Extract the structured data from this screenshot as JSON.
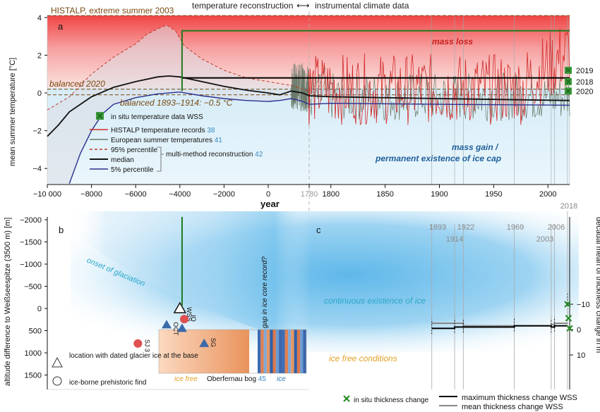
{
  "header": {
    "left": "temperature reconstruction",
    "arrow": "⟷",
    "right": "instrumental climate data"
  },
  "colors": {
    "histalp": "#d42a2a",
    "european": "#6b7b6b",
    "p95": "#c0392b",
    "median": "#111111",
    "p5": "#2a2f8f",
    "wss": "#1f7a1f",
    "ice_text": "#2aa7c9",
    "mass_loss": "#c81e1e",
    "mass_gain": "#1f5f9a",
    "dark_brown": "#7a4a12",
    "ice_free_text": "#e0a020",
    "ref_num": "#3a8ac0",
    "max_thick": "#000000",
    "mean_thick": "#888888"
  },
  "chart_data": [
    {
      "panel": "a",
      "type": "line",
      "ylabel": "mean summer temperature [°C]",
      "xlabel": "year",
      "ylim": [
        -4.6,
        4.1
      ],
      "yticks": [
        "−4",
        "−2",
        "0",
        "2",
        "4"
      ],
      "ytick_values": [
        -4,
        -2,
        0,
        2,
        4
      ],
      "xticks_left": [
        "−10 000",
        "−8000",
        "−6000",
        "−4000",
        "−2000",
        "0"
      ],
      "xtick_values_left": [
        -10000,
        -8000,
        -6000,
        -4000,
        -2000,
        0
      ],
      "xticks_right": [
        "1780",
        "1800",
        "1850",
        "1900",
        "1950",
        "2000"
      ],
      "xtick_values_right": [
        1780,
        1800,
        1850,
        1900,
        1950,
        2000
      ],
      "reference_lines": [
        {
          "label": "HISTALP, extreme summer 2003",
          "y": 4.1
        },
        {
          "label": "balanced 2020",
          "y": 0.2
        },
        {
          "label": "balanced 1893–1914: −0.5 °C",
          "y": -0.1
        }
      ],
      "in_situ_points": [
        {
          "year": 2019,
          "label": "2019",
          "y": 1.2
        },
        {
          "year": 2018,
          "label": "2018",
          "y": 0.6
        },
        {
          "year": 2020,
          "label": "2020",
          "y": 0.1
        }
      ],
      "series": [
        {
          "name": "95% percentile",
          "x": [
            -10000,
            -9000,
            -8000,
            -7000,
            -6000,
            -5500,
            -5000,
            -4600,
            -4200,
            -3800,
            -3000,
            -2000,
            -1000,
            0,
            500,
            1000,
            1500,
            1780
          ],
          "y": [
            -0.9,
            -0.2,
            1.0,
            1.9,
            2.6,
            3.1,
            3.4,
            3.6,
            3.3,
            2.5,
            1.8,
            1.2,
            0.8,
            0.6,
            0.5,
            0.4,
            0.2,
            0.1
          ]
        },
        {
          "name": "median",
          "x": [
            -10000,
            -9500,
            -9000,
            -8000,
            -7000,
            -6000,
            -5000,
            -4500,
            -4000,
            -3000,
            -2000,
            -1000,
            0,
            500,
            1000,
            1500,
            1780,
            1800,
            1900,
            2020
          ],
          "y": [
            -2.3,
            -1.7,
            -1.0,
            -0.2,
            0.3,
            0.6,
            0.85,
            0.9,
            0.85,
            0.6,
            0.35,
            0.15,
            0.0,
            -0.1,
            0.1,
            0.0,
            -0.15,
            -0.2,
            -0.3,
            -0.4
          ]
        },
        {
          "name": "5% percentile",
          "x": [
            -9000,
            -8500,
            -8000,
            -7500,
            -7000,
            -6000,
            -5000,
            -4000,
            -3000,
            -2000,
            -1000,
            0,
            500,
            1000,
            1500,
            1780,
            1800,
            1900,
            2020
          ],
          "y": [
            -4.8,
            -3.2,
            -2.0,
            -1.1,
            -0.6,
            -0.25,
            -0.05,
            0.05,
            -0.15,
            -0.3,
            -0.4,
            -0.45,
            -0.4,
            -0.3,
            -0.45,
            -0.6,
            -0.55,
            -0.6,
            -0.65
          ]
        },
        {
          "name": "WSS",
          "x": [
            -3900,
            -3900,
            2020
          ],
          "y": [
            0.1,
            3.3,
            3.3
          ]
        },
        {
          "name": "WSS level",
          "x": [
            -3900,
            2020
          ],
          "y": [
            0.8,
            0.8
          ]
        }
      ],
      "annotations": [
        "mass loss",
        "mass gain /",
        "permanent existence of ice cap"
      ],
      "legend": [
        {
          "label": "in situ temperature data WSS",
          "ref": ""
        },
        {
          "label": "HISTALP temperature records",
          "ref": "38"
        },
        {
          "label": "European summer temperatures",
          "ref": "41"
        },
        {
          "label": "95% percentile",
          "ref": ""
        },
        {
          "label": "median",
          "ref": ""
        },
        {
          "label": "5% percentile",
          "ref": ""
        },
        {
          "label": "multi-method reconstruction",
          "ref": "42"
        }
      ],
      "vertical_years": [
        1893,
        1914,
        1922,
        1969,
        2003,
        2006,
        2018
      ]
    },
    {
      "panel": "b",
      "type": "scatter",
      "ylabel": "altitude difference to Weißseespitze (3500 m) [m]",
      "ylim": [
        -2000,
        1800
      ],
      "yticks": [
        "−2000",
        "−1500",
        "−1000",
        "−500",
        "0",
        "500",
        "1000",
        "1500"
      ],
      "ytick_values": [
        -2000,
        -1500,
        -1000,
        -500,
        0,
        500,
        1000,
        1500
      ],
      "sites": [
        {
          "label": "O",
          "type": "dated glacier ice",
          "year": -4600,
          "alt": 370
        },
        {
          "label": "WSS",
          "type": "dated glacier ice",
          "year": -4000,
          "alt": 0
        },
        {
          "label": "IO",
          "type": "prehistoric find",
          "year": -3800,
          "alt": 240
        },
        {
          "label": "CT",
          "type": "dated glacier ice",
          "year": -3900,
          "alt": 450
        },
        {
          "label": "SG",
          "type": "dated glacier ice",
          "year": -2900,
          "alt": 790
        },
        {
          "label": "SJ 3",
          "type": "prehistoric find",
          "year": -5900,
          "alt": 790
        }
      ],
      "annotations": [
        "onset of glaciation",
        "gap in ice core record?",
        "ice free",
        "ice",
        "Oberfernau bog",
        "45"
      ],
      "legend": [
        {
          "label": "location with dated glacier ice at the base",
          "symbol": "triangle"
        },
        {
          "label": "ice-borne prehistoric find",
          "symbol": "circle"
        }
      ]
    },
    {
      "panel": "c",
      "type": "line",
      "ylabel": "decadal mean of thickness change in m",
      "yticks": [
        "−10",
        "0",
        "10"
      ],
      "ytick_values": [
        -10,
        0,
        10
      ],
      "year_labels": [
        "1893",
        "1914",
        "1922",
        "1969",
        "2003",
        "2006",
        "2018"
      ],
      "annotations": [
        "continuous existence of ice",
        "ice free conditions"
      ],
      "series": [
        {
          "name": "maximum thickness change WSS",
          "x": [
            1893,
            1914,
            1922,
            1969,
            2003,
            2006,
            2018
          ],
          "y": [
            -0.5,
            -1.0,
            -1.0,
            -1.5,
            -1.0,
            -1.5,
            -11.5
          ]
        },
        {
          "name": "mean thickness change WSS",
          "x": [
            1893,
            1914,
            1922,
            1969,
            2003,
            2006,
            2018
          ],
          "y": [
            -2.5,
            -2.5,
            -1.5,
            -1.5,
            -2.0,
            -2.5,
            -5.5
          ]
        },
        {
          "name": "in situ thickness change",
          "x": [
            2018,
            2019,
            2020
          ],
          "y": [
            -10.0,
            -4.5,
            -0.5
          ]
        }
      ],
      "legend": [
        {
          "label": "in situ thickness change",
          "symbol": "x"
        },
        {
          "label": "maximum thickness change WSS",
          "symbol": "line"
        },
        {
          "label": "mean thickness change WSS",
          "symbol": "line"
        }
      ]
    }
  ],
  "panel_labels": [
    "a",
    "b",
    "c"
  ]
}
